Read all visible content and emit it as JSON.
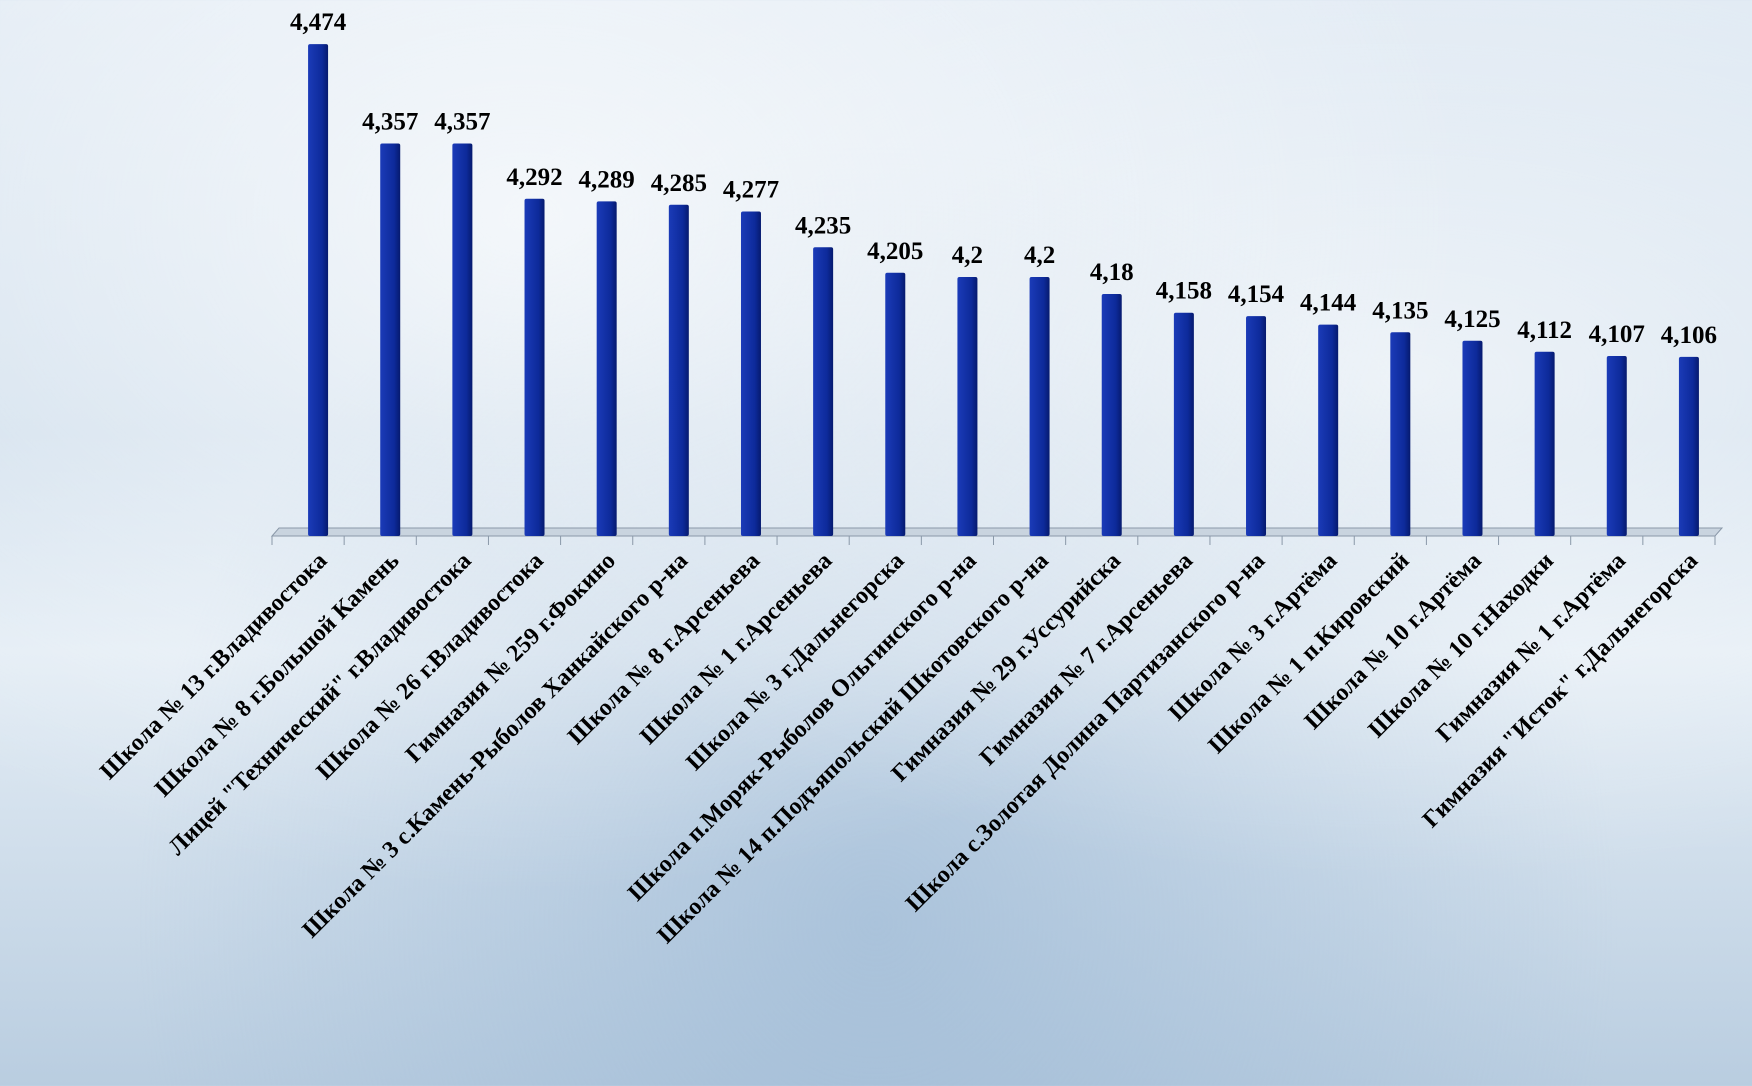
{
  "chart_data": {
    "type": "bar",
    "categories": [
      "Школа № 13 г.Владивостока",
      "Школа № 8 г.Большой Камень",
      "Лицей \"Технический\" г.Владивостока",
      "Школа № 26 г.Владивостока",
      "Гимназия № 259 г.Фокино",
      "Школа № 3 с.Камень-Рыболов Ханкайского р-на",
      "Школа № 8 г.Арсеньева",
      "Школа № 1 г.Арсеньева",
      "Школа № 3 г.Дальнегорска",
      "Школа п.Моряк-Рыболов Ольгинского р-на",
      "Школа № 14 п.Подъяпольский Шкотовского р-на",
      "Гимназия № 29 г.Уссурийска",
      "Гимназия № 7 г.Арсеньева",
      "Школа с.Золотая Долина Партизанского р-на",
      "Школа № 3 г.Артёма",
      "Школа № 1 п.Кировский",
      "Школа № 10 г.Артёма",
      "Школа № 10 г.Находки",
      "Гимназия № 1 г.Артёма",
      "Гимназия \"Исток\" г.Дальнегорска"
    ],
    "values": [
      4.474,
      4.357,
      4.357,
      4.292,
      4.289,
      4.285,
      4.277,
      4.235,
      4.205,
      4.2,
      4.2,
      4.18,
      4.158,
      4.154,
      4.144,
      4.135,
      4.125,
      4.112,
      4.107,
      4.106
    ],
    "value_labels": [
      "4,474",
      "4,357",
      "4,357",
      "4,292",
      "4,289",
      "4,285",
      "4,277",
      "4,235",
      "4,205",
      "4,2",
      "4,2",
      "4,18",
      "4,158",
      "4,154",
      "4,144",
      "4,135",
      "4,125",
      "4,112",
      "4,107",
      "4,106"
    ],
    "color": "#0d2a9a",
    "ylim": [
      3.9,
      4.5
    ]
  }
}
